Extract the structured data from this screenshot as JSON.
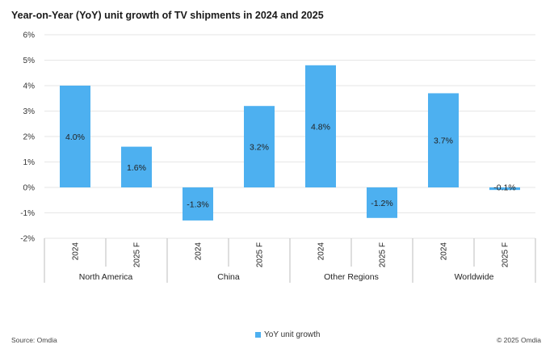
{
  "title": "Year-on-Year (YoY) unit growth of TV shipments in 2024 and 2025",
  "footer": {
    "source": "Source: Omdia",
    "copyright": "© 2025 Omdia"
  },
  "colors": {
    "bar": "#4db0f0",
    "grid": "#e6e6e6",
    "axis": "#bdbdbd"
  },
  "chart_data": {
    "type": "bar",
    "title": "Year-on-Year (YoY) unit growth of TV shipments in 2024 and 2025",
    "groups": [
      "North America",
      "China",
      "Other Regions",
      "Worldwide"
    ],
    "categories": [
      "2024",
      "2025 F",
      "2024",
      "2025 F",
      "2024",
      "2025 F",
      "2024",
      "2025 F"
    ],
    "series": [
      {
        "name": "YoY unit growth",
        "values": [
          4.0,
          1.6,
          -1.3,
          3.2,
          4.8,
          -1.2,
          3.7,
          -0.1
        ],
        "labels": [
          "4.0%",
          "1.6%",
          "-1.3%",
          "3.2%",
          "4.8%",
          "-1.2%",
          "3.7%",
          "-0.1%"
        ]
      }
    ],
    "ylim": [
      -2,
      6
    ],
    "yticks": [
      6,
      5,
      4,
      3,
      2,
      1,
      0,
      -1,
      -2
    ],
    "ytick_labels": [
      "6%",
      "5%",
      "4%",
      "3%",
      "2%",
      "1%",
      "0%",
      "-1%",
      "-2%"
    ],
    "xlabel": "",
    "ylabel": "",
    "grid": true,
    "legend": "bottom-center"
  }
}
